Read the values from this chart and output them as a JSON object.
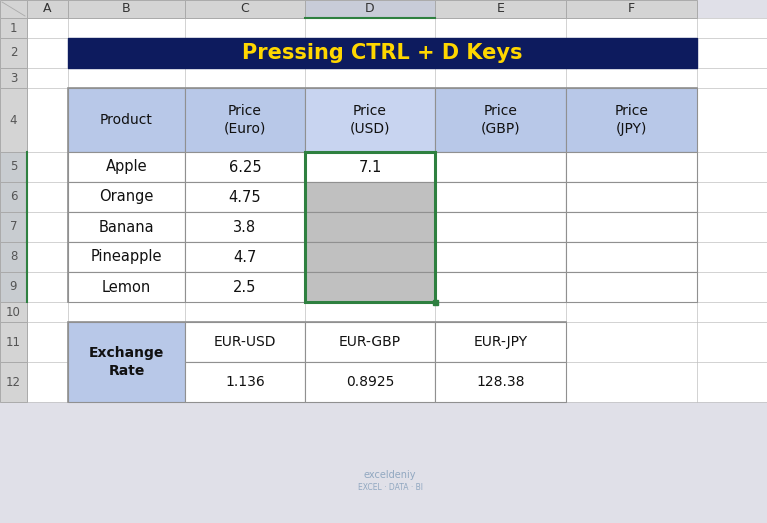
{
  "title": "Pressing CTRL + D Keys",
  "title_bg": "#0D1B5E",
  "title_fg": "#FFD700",
  "title_fontsize": 15,
  "col_labels": [
    "A",
    "B",
    "C",
    "D",
    "E",
    "F"
  ],
  "row_labels": [
    "1",
    "2",
    "3",
    "4",
    "5",
    "6",
    "7",
    "8",
    "9",
    "10",
    "11",
    "12"
  ],
  "table1_header_bg": "#B8C8E8",
  "table1_headers": [
    "Product",
    "Price\n(Euro)",
    "Price\n(USD)",
    "Price\n(GBP)",
    "Price\n(JPY)"
  ],
  "table1_rows": [
    [
      "Apple",
      "6.25",
      "7.1",
      "",
      ""
    ],
    [
      "Orange",
      "4.75",
      "",
      "",
      ""
    ],
    [
      "Banana",
      "3.8",
      "",
      "",
      ""
    ],
    [
      "Pineapple",
      "4.7",
      "",
      "",
      ""
    ],
    [
      "Lemon",
      "2.5",
      "",
      "",
      ""
    ]
  ],
  "selected_col_bg": "#BCC8E8",
  "selected_cell_bg": "#C0C0C0",
  "selected_header_bg": "#C8D4F0",
  "table2_header_bg": "#B8C8E8",
  "table2_headers": [
    "Exchange\nRate",
    "EUR-USD",
    "EUR-GBP",
    "EUR-JPY"
  ],
  "table2_row": [
    "",
    "1.136",
    "0.8925",
    "128.38"
  ],
  "outer_bg": "#E0E0E8",
  "cell_bg": "#FFFFFF",
  "header_strip_bg": "#D4D4D4",
  "col_header_selected_bg": "#C8CCD8",
  "row_selected_bg": "#C8CCD0",
  "grid_color": "#C0C0C0",
  "border_color": "#909090",
  "selection_color": "#2E8040"
}
